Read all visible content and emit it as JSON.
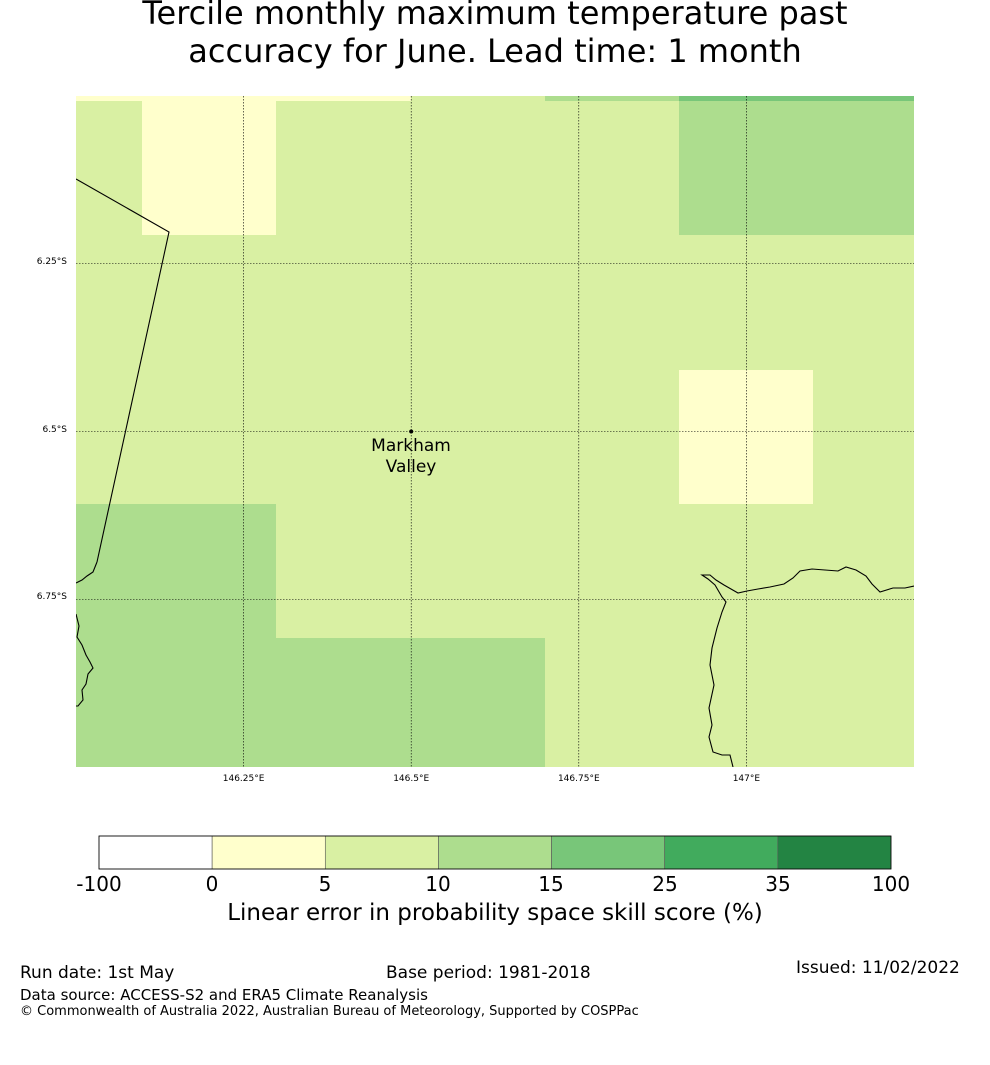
{
  "title": {
    "line1": "Tercile monthly maximum temperature past",
    "line2": "accuracy for June. Lead time: 1 month"
  },
  "map": {
    "lat_ticks": [
      "6.25°S",
      "6.5°S",
      "6.75°S"
    ],
    "lon_ticks": [
      "146.25°E",
      "146.5°E",
      "146.75°E",
      "147°E"
    ],
    "extent": {
      "lon_min": 146.0,
      "lon_max": 147.25,
      "lat_min": -7.0,
      "lat_max": -6.0
    },
    "place": {
      "name_line1": "Markham",
      "name_line2": "Valley",
      "lon": 146.5,
      "lat": -6.5
    },
    "cells": [
      {
        "lon0": 146.0,
        "lon1": 146.1,
        "lat0": -6.0,
        "lat1": -6.2,
        "category": "5-10"
      },
      {
        "lon0": 146.1,
        "lon1": 146.3,
        "lat0": -6.0,
        "lat1": -6.2,
        "category": "0-5"
      },
      {
        "lon0": 146.3,
        "lon1": 146.9,
        "lat0": -6.0,
        "lat1": -6.2,
        "category": "5-10"
      },
      {
        "lon0": 146.9,
        "lon1": 147.25,
        "lat0": -6.0,
        "lat1": -6.2,
        "category": "10-15"
      },
      {
        "lon0": 146.9,
        "lon1": 147.1,
        "lat0": -6.4,
        "lat1": -6.6,
        "category": "0-5"
      },
      {
        "lon0": 146.0,
        "lon1": 146.3,
        "lat0": -6.6,
        "lat1": -6.8,
        "category": "10-15"
      },
      {
        "lon0": 146.0,
        "lon1": 146.7,
        "lat0": -6.8,
        "lat1": -7.0,
        "category": "10-15"
      }
    ]
  },
  "legend": {
    "bounds": [
      "-100",
      "0",
      "5",
      "10",
      "15",
      "25",
      "35",
      "100"
    ],
    "colors": [
      "#ffffff",
      "#ffffcc",
      "#d9f0a3",
      "#addd8e",
      "#78c679",
      "#41ab5d",
      "#238443"
    ],
    "title": "Linear error in probability space skill score (%)"
  },
  "footer": {
    "run_date": "Run date: 1st May",
    "base_period": "Base period: 1981-2018",
    "issued": "Issued: 11/02/2022",
    "data_source": "Data source: ACCESS-S2 and ERA5 Climate Reanalysis",
    "copyright": "© Commonwealth of Australia 2022, Australian Bureau of Meteorology, Supported by COSPPac"
  }
}
